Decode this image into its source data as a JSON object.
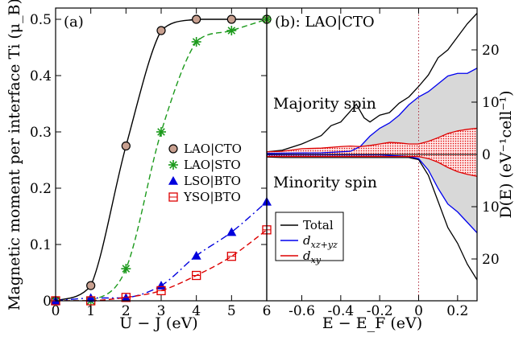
{
  "chart_data": [
    {
      "panel_label": "(a)",
      "type": "line",
      "xlabel": "U − J (eV)",
      "ylabel": "Magnetic moment per interface Ti (μ_B)",
      "xlim": [
        0,
        6
      ],
      "ylim": [
        0,
        0.52
      ],
      "xticks": [
        "0",
        "1",
        "2",
        "3",
        "4",
        "5",
        "6"
      ],
      "yticks": [
        "0",
        "0.1",
        "0.2",
        "0.3",
        "0.4",
        "0.5"
      ],
      "legend_position": "right-middle",
      "series": [
        {
          "name": "LAO|CTO",
          "color": "#000000",
          "marker": "circle",
          "marker_fill": "#c8a090",
          "line": "solid",
          "x": [
            0,
            1,
            2,
            3,
            4,
            5,
            6
          ],
          "y": [
            0,
            0.027,
            0.275,
            0.48,
            0.5,
            0.5,
            0.5
          ]
        },
        {
          "name": "LAO|STO",
          "color": "#1c9a1c",
          "marker": "star",
          "line": "dashed",
          "x": [
            0,
            1,
            2,
            3,
            4,
            5,
            6
          ],
          "y": [
            0,
            0,
            0.057,
            0.3,
            0.46,
            0.48,
            0.5
          ]
        },
        {
          "name": "LSO|BTO",
          "color": "#0000dd",
          "marker": "triangle",
          "line": "dashdot",
          "x": [
            0,
            1,
            2,
            3,
            4,
            5,
            6
          ],
          "y": [
            0,
            0.005,
            0.005,
            0.027,
            0.08,
            0.122,
            0.176
          ]
        },
        {
          "name": "YSO|BTO",
          "color": "#dd0000",
          "marker": "square",
          "line": "dashed",
          "x": [
            0,
            1,
            2,
            3,
            4,
            5,
            6
          ],
          "y": [
            0,
            0,
            0.006,
            0.018,
            0.045,
            0.079,
            0.126
          ]
        }
      ]
    },
    {
      "panel_label": "(b): LAO|CTO",
      "type": "area",
      "xlabel": "E − E_F (eV)",
      "ylabel": "D(E) (eV⁻¹cell⁻¹)",
      "xlim": [
        -0.78,
        0.3
      ],
      "ylim": [
        -28,
        28
      ],
      "xticks": [
        "-0.6",
        "-0.4",
        "-0.2",
        "0",
        "0.2"
      ],
      "yticks_right": [
        "20",
        "10",
        "0",
        "10",
        "20"
      ],
      "fermi_level_line": 0,
      "annotations": [
        "Majority spin",
        "Minority spin"
      ],
      "legend_position": "bottom-left",
      "legend": [
        "Total",
        "d_xz+yz",
        "d_xy"
      ],
      "series": [
        {
          "name": "Total",
          "color": "#000000",
          "x": [
            -0.78,
            -0.7,
            -0.6,
            -0.5,
            -0.45,
            -0.4,
            -0.35,
            -0.32,
            -0.28,
            -0.25,
            -0.2,
            -0.15,
            -0.1,
            -0.05,
            0,
            0.05,
            0.1,
            0.15,
            0.2,
            0.25,
            0.3
          ],
          "up": [
            0.5,
            0.8,
            2.0,
            3.6,
            5.5,
            6.2,
            8.3,
            9.6,
            7.0,
            6.2,
            7.5,
            8.0,
            9.8,
            11.0,
            13.0,
            15.2,
            18.5,
            20.0,
            22.5,
            25.0,
            27.0
          ],
          "down": [
            -0.5,
            -0.6,
            -0.6,
            -0.6,
            -0.6,
            -0.6,
            -0.6,
            -0.6,
            -0.6,
            -0.6,
            -0.6,
            -0.6,
            -0.6,
            -0.6,
            -1.0,
            -4.0,
            -9.0,
            -14.0,
            -17.0,
            -21.0,
            -24.0
          ]
        },
        {
          "name": "d_xz+yz",
          "color": "#0000ee",
          "x": [
            -0.78,
            -0.5,
            -0.35,
            -0.3,
            -0.25,
            -0.2,
            -0.15,
            -0.1,
            -0.05,
            0,
            0.05,
            0.1,
            0.15,
            0.2,
            0.25,
            0.3
          ],
          "up": [
            0.2,
            0.3,
            0.6,
            1.5,
            3.5,
            5.0,
            6.0,
            7.5,
            9.5,
            11.0,
            12.0,
            13.5,
            15.0,
            15.5,
            15.5,
            16.5
          ],
          "down": [
            -0.1,
            -0.1,
            -0.1,
            -0.1,
            -0.1,
            -0.1,
            -0.2,
            -0.3,
            -0.4,
            -0.8,
            -3.0,
            -6.5,
            -9.5,
            -11.0,
            -13.0,
            -15.0
          ]
        },
        {
          "name": "d_xy",
          "color": "#dd0000",
          "x": [
            -0.78,
            -0.7,
            -0.6,
            -0.5,
            -0.4,
            -0.35,
            -0.3,
            -0.25,
            -0.2,
            -0.15,
            -0.1,
            -0.05,
            0,
            0.05,
            0.1,
            0.15,
            0.2,
            0.25,
            0.3
          ],
          "up": [
            0.5,
            0.6,
            1.1,
            1.2,
            1.5,
            1.6,
            1.5,
            1.7,
            2.0,
            2.3,
            2.2,
            2.0,
            2.0,
            2.5,
            3.2,
            4.0,
            4.5,
            4.8,
            5.0
          ],
          "down": [
            -0.4,
            -0.4,
            -0.4,
            -0.4,
            -0.4,
            -0.4,
            -0.4,
            -0.4,
            -0.4,
            -0.4,
            -0.4,
            -0.4,
            -0.4,
            -0.8,
            -1.5,
            -2.5,
            -3.3,
            -3.8,
            -4.2
          ]
        }
      ]
    }
  ]
}
